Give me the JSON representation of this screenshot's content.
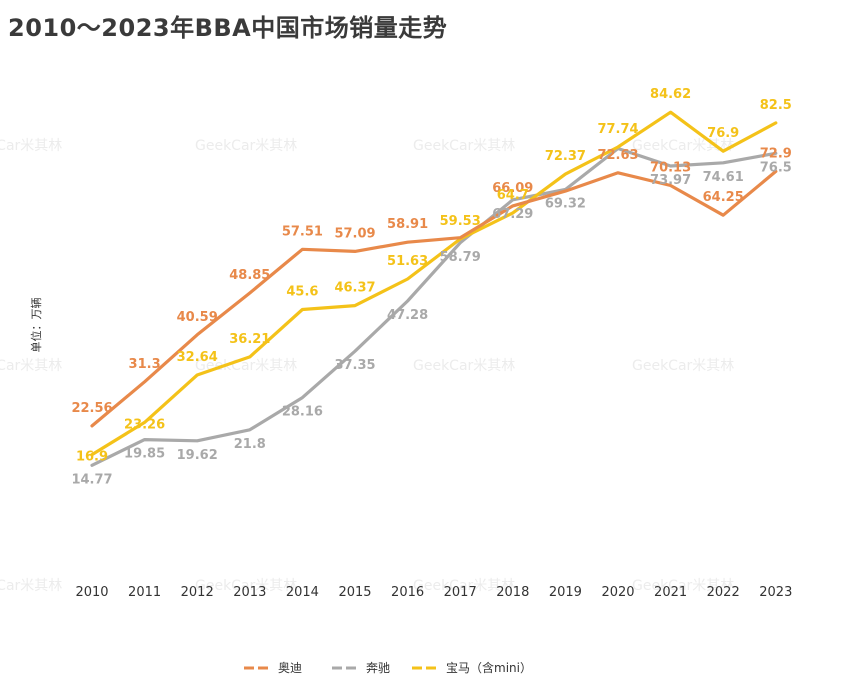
{
  "chart_data": {
    "type": "line",
    "title": "2010～2023年BBA中国市场销量走势",
    "ylabel": "单位：万辆",
    "xlabel": "",
    "categories": [
      "2010",
      "2011",
      "2012",
      "2013",
      "2014",
      "2015",
      "2016",
      "2017",
      "2018",
      "2019",
      "2020",
      "2021",
      "2022",
      "2023"
    ],
    "ylim": [
      0,
      90
    ],
    "grid": false,
    "legend_placement": "bottom-center",
    "series": [
      {
        "name": "奥迪",
        "color": "#e8894a",
        "values": [
          22.56,
          31.3,
          40.59,
          48.85,
          57.51,
          57.09,
          58.91,
          59.79,
          66.09,
          69.02,
          72.63,
          70.13,
          64.25,
          72.9
        ],
        "labels": [
          "22.56",
          "31.3",
          "40.59",
          "48.85",
          "57.51",
          "57.09",
          "58.91",
          "",
          "66.09",
          "",
          "72.63",
          "70.13",
          "64.25",
          "72.9"
        ]
      },
      {
        "name": "奔驰",
        "color": "#a9a9a9",
        "values": [
          14.77,
          19.85,
          19.62,
          21.8,
          28.16,
          37.35,
          47.28,
          58.79,
          67.29,
          69.32,
          77.44,
          73.97,
          74.61,
          76.5
        ],
        "labels": [
          "14.77",
          "19.85",
          "19.62",
          "21.8",
          "28.16",
          "37.35",
          "47.28",
          "58.79",
          "67.29",
          "69.32",
          "",
          "73.97",
          "74.61",
          "76.5"
        ]
      },
      {
        "name": "宝马（含mini）",
        "color": "#f4c219",
        "values": [
          16.9,
          23.26,
          32.64,
          36.21,
          45.6,
          46.37,
          51.63,
          59.53,
          64.7,
          72.37,
          77.74,
          84.62,
          76.9,
          82.5
        ],
        "labels": [
          "16.9",
          "23.26",
          "32.64",
          "36.21",
          "45.6",
          "46.37",
          "51.63",
          "59.53",
          "64.7",
          "72.37",
          "77.74",
          "84.62",
          "76.9",
          "82.5"
        ]
      }
    ]
  },
  "watermark": "GeekCar米其林"
}
